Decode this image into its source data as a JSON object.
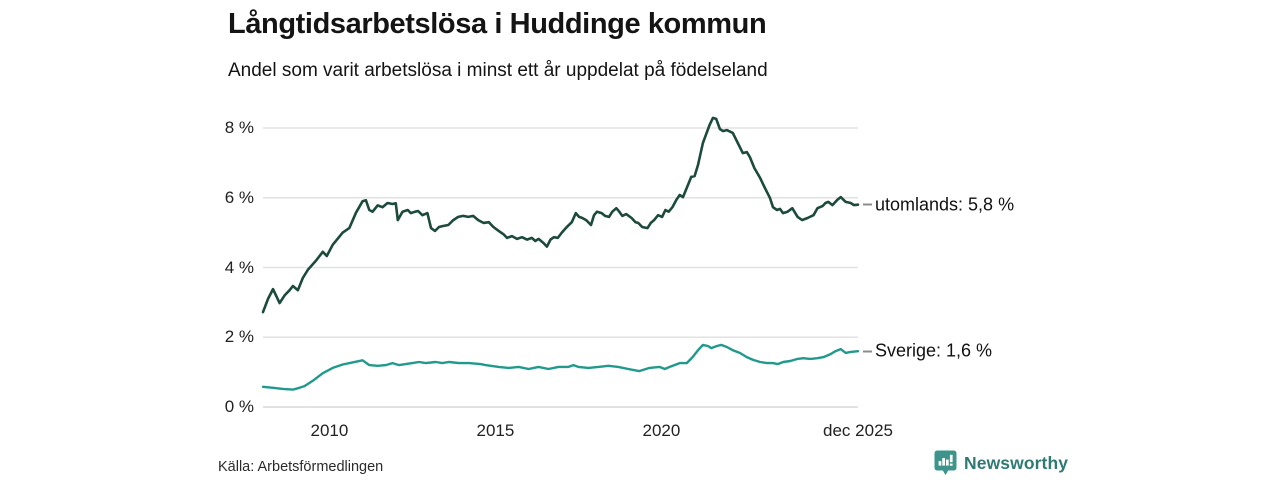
{
  "header": {
    "title": "Långtidsarbetslösa i Huddinge kommun",
    "subtitle": "Andel som varit arbetslösa i minst ett år uppdelat på födelseland"
  },
  "footer": {
    "source": "Källa: Arbetsförmedlingen",
    "brand": "Newsworthy",
    "brand_icon": "newsworthy-speech-bubble-chart-icon",
    "brand_color": "#2f7a73",
    "brand_icon_color": "#3d948c"
  },
  "colors": {
    "grid": "#e2e2e2",
    "zero_line": "#d9d9d9",
    "connector": "#8c8c8c",
    "text": "#141414"
  },
  "chart_data": {
    "type": "line",
    "title": "Långtidsarbetslösa i Huddinge kommun",
    "subtitle": "Andel som varit arbetslösa i minst ett år uppdelat på födelseland",
    "xlabel": "",
    "ylabel": "",
    "xlim": [
      2008.0,
      2025.92
    ],
    "ylim": [
      0,
      8
    ],
    "grid": "horizontal",
    "legend_position": "right-of-line-ends",
    "y_ticks": [
      {
        "value": 0,
        "label": "0 %"
      },
      {
        "value": 2,
        "label": "2 %"
      },
      {
        "value": 4,
        "label": "4 %"
      },
      {
        "value": 6,
        "label": "6 %"
      },
      {
        "value": 8,
        "label": "8 %"
      }
    ],
    "x_ticks": [
      {
        "value": 2010,
        "label": "2010"
      },
      {
        "value": 2015,
        "label": "2015"
      },
      {
        "value": 2020,
        "label": "2020"
      },
      {
        "value": 2025.92,
        "label": "dec 2025"
      }
    ],
    "series": [
      {
        "name": "utomlands",
        "end_label": "utomlands: 5,8 %",
        "last_value": 5.8,
        "color": "#1c4a3c",
        "stroke_width": 2.6,
        "points": [
          [
            2008.0,
            2.72
          ],
          [
            2008.15,
            3.1
          ],
          [
            2008.3,
            3.38
          ],
          [
            2008.5,
            2.98
          ],
          [
            2008.65,
            3.2
          ],
          [
            2008.8,
            3.35
          ],
          [
            2008.9,
            3.47
          ],
          [
            2009.05,
            3.35
          ],
          [
            2009.2,
            3.7
          ],
          [
            2009.35,
            3.93
          ],
          [
            2009.6,
            4.2
          ],
          [
            2009.8,
            4.45
          ],
          [
            2009.92,
            4.33
          ],
          [
            2010.1,
            4.65
          ],
          [
            2010.4,
            5.0
          ],
          [
            2010.6,
            5.13
          ],
          [
            2010.8,
            5.57
          ],
          [
            2011.0,
            5.9
          ],
          [
            2011.1,
            5.93
          ],
          [
            2011.2,
            5.65
          ],
          [
            2011.3,
            5.6
          ],
          [
            2011.45,
            5.78
          ],
          [
            2011.6,
            5.73
          ],
          [
            2011.75,
            5.85
          ],
          [
            2011.9,
            5.82
          ],
          [
            2012.0,
            5.84
          ],
          [
            2012.06,
            5.36
          ],
          [
            2012.2,
            5.6
          ],
          [
            2012.36,
            5.65
          ],
          [
            2012.45,
            5.56
          ],
          [
            2012.58,
            5.6
          ],
          [
            2012.67,
            5.62
          ],
          [
            2012.8,
            5.5
          ],
          [
            2012.95,
            5.56
          ],
          [
            2013.06,
            5.13
          ],
          [
            2013.18,
            5.05
          ],
          [
            2013.3,
            5.16
          ],
          [
            2013.42,
            5.19
          ],
          [
            2013.58,
            5.22
          ],
          [
            2013.73,
            5.36
          ],
          [
            2013.88,
            5.45
          ],
          [
            2014.03,
            5.48
          ],
          [
            2014.18,
            5.45
          ],
          [
            2014.33,
            5.48
          ],
          [
            2014.48,
            5.36
          ],
          [
            2014.64,
            5.28
          ],
          [
            2014.8,
            5.3
          ],
          [
            2014.94,
            5.16
          ],
          [
            2015.1,
            5.05
          ],
          [
            2015.25,
            4.95
          ],
          [
            2015.35,
            4.85
          ],
          [
            2015.5,
            4.9
          ],
          [
            2015.65,
            4.82
          ],
          [
            2015.8,
            4.87
          ],
          [
            2015.95,
            4.8
          ],
          [
            2016.1,
            4.85
          ],
          [
            2016.2,
            4.76
          ],
          [
            2016.3,
            4.82
          ],
          [
            2016.45,
            4.7
          ],
          [
            2016.55,
            4.6
          ],
          [
            2016.66,
            4.8
          ],
          [
            2016.76,
            4.87
          ],
          [
            2016.88,
            4.85
          ],
          [
            2017.0,
            5.0
          ],
          [
            2017.15,
            5.16
          ],
          [
            2017.3,
            5.3
          ],
          [
            2017.42,
            5.56
          ],
          [
            2017.52,
            5.45
          ],
          [
            2017.62,
            5.42
          ],
          [
            2017.73,
            5.36
          ],
          [
            2017.88,
            5.22
          ],
          [
            2017.97,
            5.5
          ],
          [
            2018.06,
            5.6
          ],
          [
            2018.2,
            5.56
          ],
          [
            2018.3,
            5.48
          ],
          [
            2018.42,
            5.45
          ],
          [
            2018.52,
            5.6
          ],
          [
            2018.64,
            5.7
          ],
          [
            2018.73,
            5.6
          ],
          [
            2018.82,
            5.48
          ],
          [
            2018.94,
            5.53
          ],
          [
            2019.1,
            5.42
          ],
          [
            2019.22,
            5.3
          ],
          [
            2019.3,
            5.28
          ],
          [
            2019.42,
            5.16
          ],
          [
            2019.58,
            5.13
          ],
          [
            2019.68,
            5.28
          ],
          [
            2019.78,
            5.36
          ],
          [
            2019.9,
            5.5
          ],
          [
            2020.02,
            5.45
          ],
          [
            2020.12,
            5.65
          ],
          [
            2020.22,
            5.6
          ],
          [
            2020.33,
            5.73
          ],
          [
            2020.45,
            5.94
          ],
          [
            2020.55,
            6.08
          ],
          [
            2020.65,
            6.02
          ],
          [
            2020.9,
            6.6
          ],
          [
            2021.0,
            6.62
          ],
          [
            2021.1,
            6.94
          ],
          [
            2021.25,
            7.57
          ],
          [
            2021.45,
            8.09
          ],
          [
            2021.55,
            8.29
          ],
          [
            2021.65,
            8.26
          ],
          [
            2021.76,
            7.97
          ],
          [
            2021.85,
            7.91
          ],
          [
            2021.97,
            7.94
          ],
          [
            2022.15,
            7.86
          ],
          [
            2022.3,
            7.57
          ],
          [
            2022.45,
            7.28
          ],
          [
            2022.57,
            7.31
          ],
          [
            2022.66,
            7.17
          ],
          [
            2022.8,
            6.85
          ],
          [
            2022.97,
            6.57
          ],
          [
            2023.1,
            6.31
          ],
          [
            2023.27,
            5.99
          ],
          [
            2023.36,
            5.73
          ],
          [
            2023.48,
            5.65
          ],
          [
            2023.57,
            5.68
          ],
          [
            2023.66,
            5.56
          ],
          [
            2023.8,
            5.6
          ],
          [
            2023.94,
            5.7
          ],
          [
            2024.1,
            5.45
          ],
          [
            2024.24,
            5.36
          ],
          [
            2024.4,
            5.42
          ],
          [
            2024.58,
            5.5
          ],
          [
            2024.7,
            5.7
          ],
          [
            2024.85,
            5.76
          ],
          [
            2024.94,
            5.85
          ],
          [
            2025.03,
            5.88
          ],
          [
            2025.15,
            5.79
          ],
          [
            2025.3,
            5.94
          ],
          [
            2025.4,
            6.02
          ],
          [
            2025.55,
            5.88
          ],
          [
            2025.7,
            5.85
          ],
          [
            2025.8,
            5.79
          ],
          [
            2025.92,
            5.8
          ]
        ]
      },
      {
        "name": "Sverige",
        "end_label": "Sverige: 1,6 %",
        "last_value": 1.6,
        "color": "#21998c",
        "stroke_width": 2.4,
        "points": [
          [
            2008.0,
            0.58
          ],
          [
            2008.3,
            0.55
          ],
          [
            2008.6,
            0.52
          ],
          [
            2008.9,
            0.5
          ],
          [
            2009.1,
            0.55
          ],
          [
            2009.25,
            0.6
          ],
          [
            2009.5,
            0.75
          ],
          [
            2009.8,
            0.97
          ],
          [
            2010.1,
            1.12
          ],
          [
            2010.4,
            1.22
          ],
          [
            2010.7,
            1.28
          ],
          [
            2011.0,
            1.34
          ],
          [
            2011.2,
            1.2
          ],
          [
            2011.45,
            1.18
          ],
          [
            2011.7,
            1.2
          ],
          [
            2011.9,
            1.26
          ],
          [
            2012.1,
            1.2
          ],
          [
            2012.3,
            1.23
          ],
          [
            2012.5,
            1.26
          ],
          [
            2012.7,
            1.29
          ],
          [
            2012.9,
            1.26
          ],
          [
            2013.2,
            1.29
          ],
          [
            2013.4,
            1.26
          ],
          [
            2013.6,
            1.29
          ],
          [
            2013.9,
            1.26
          ],
          [
            2014.2,
            1.26
          ],
          [
            2014.55,
            1.23
          ],
          [
            2014.7,
            1.2
          ],
          [
            2015.1,
            1.15
          ],
          [
            2015.4,
            1.12
          ],
          [
            2015.7,
            1.15
          ],
          [
            2016.0,
            1.09
          ],
          [
            2016.3,
            1.15
          ],
          [
            2016.6,
            1.09
          ],
          [
            2016.9,
            1.15
          ],
          [
            2017.2,
            1.15
          ],
          [
            2017.35,
            1.2
          ],
          [
            2017.5,
            1.15
          ],
          [
            2017.8,
            1.12
          ],
          [
            2018.1,
            1.15
          ],
          [
            2018.4,
            1.18
          ],
          [
            2018.7,
            1.15
          ],
          [
            2019.0,
            1.09
          ],
          [
            2019.33,
            1.03
          ],
          [
            2019.64,
            1.12
          ],
          [
            2019.94,
            1.15
          ],
          [
            2020.1,
            1.09
          ],
          [
            2020.25,
            1.15
          ],
          [
            2020.55,
            1.26
          ],
          [
            2020.76,
            1.26
          ],
          [
            2020.94,
            1.43
          ],
          [
            2021.1,
            1.63
          ],
          [
            2021.25,
            1.78
          ],
          [
            2021.4,
            1.75
          ],
          [
            2021.5,
            1.69
          ],
          [
            2021.67,
            1.75
          ],
          [
            2021.8,
            1.78
          ],
          [
            2021.97,
            1.72
          ],
          [
            2022.15,
            1.63
          ],
          [
            2022.36,
            1.55
          ],
          [
            2022.57,
            1.43
          ],
          [
            2022.76,
            1.35
          ],
          [
            2022.97,
            1.29
          ],
          [
            2023.18,
            1.26
          ],
          [
            2023.36,
            1.26
          ],
          [
            2023.5,
            1.23
          ],
          [
            2023.67,
            1.29
          ],
          [
            2023.88,
            1.32
          ],
          [
            2024.1,
            1.38
          ],
          [
            2024.27,
            1.4
          ],
          [
            2024.48,
            1.38
          ],
          [
            2024.7,
            1.4
          ],
          [
            2024.88,
            1.43
          ],
          [
            2025.1,
            1.52
          ],
          [
            2025.24,
            1.6
          ],
          [
            2025.4,
            1.66
          ],
          [
            2025.55,
            1.55
          ],
          [
            2025.7,
            1.58
          ],
          [
            2025.92,
            1.6
          ]
        ]
      }
    ]
  }
}
